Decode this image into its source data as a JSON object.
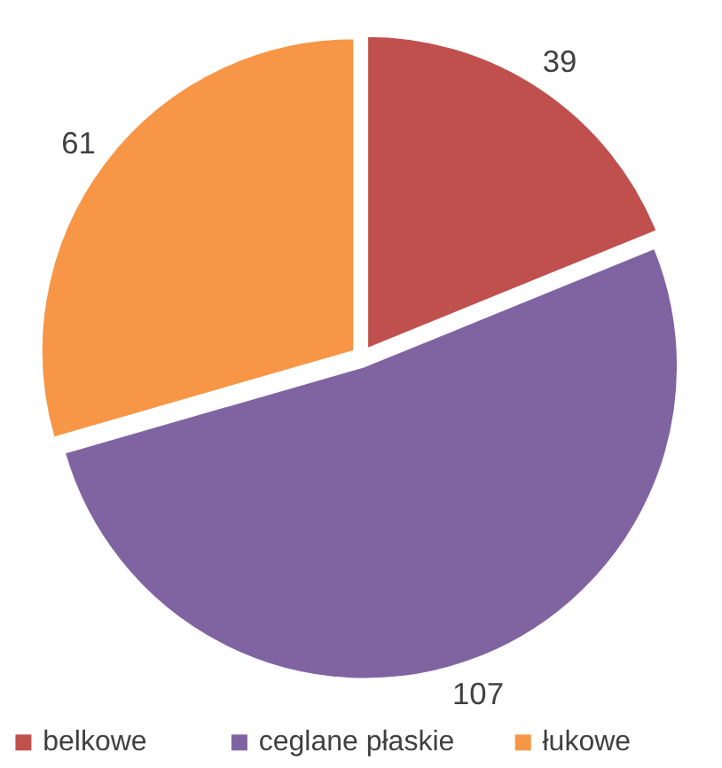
{
  "chart_data": {
    "type": "pie",
    "categories": [
      "belkowe",
      "ceglane płaskie",
      "łukowe"
    ],
    "values": [
      39,
      107,
      61
    ],
    "colors": [
      "#c0504d",
      "#8064a2",
      "#f79646"
    ],
    "data_labels": true,
    "legend": "bottom"
  }
}
